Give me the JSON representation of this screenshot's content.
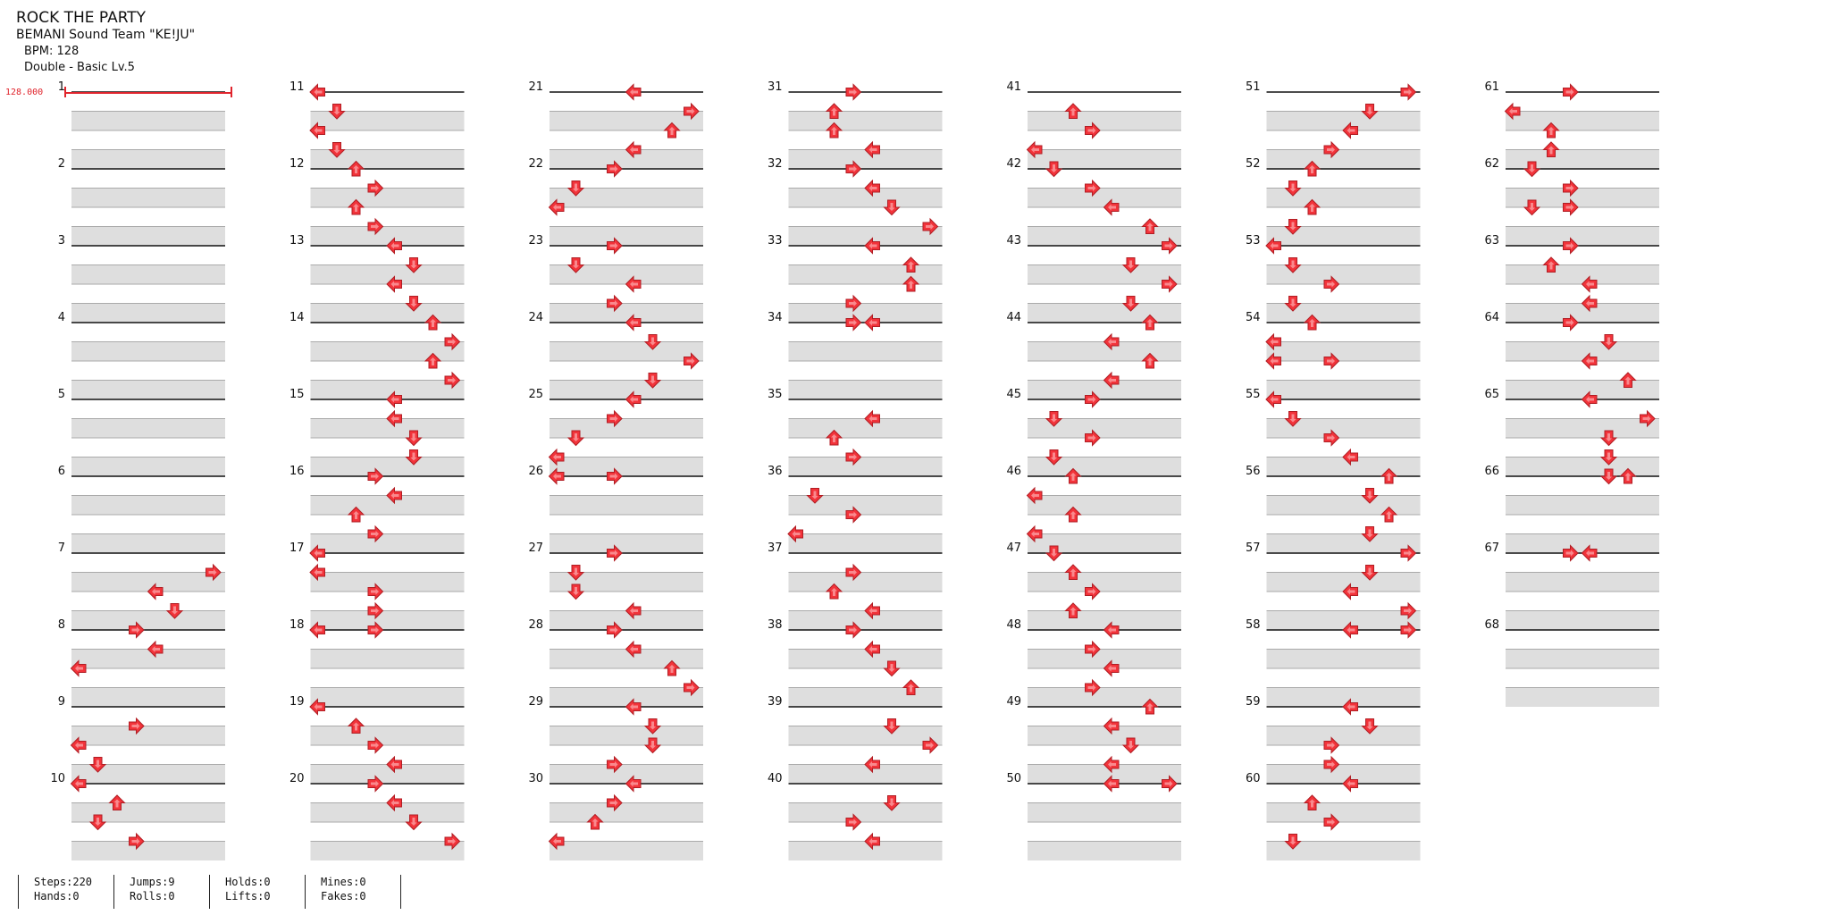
{
  "song": {
    "title": "ROCK THE PARTY",
    "artist": "BEMANI Sound Team \"KE!JU\"",
    "bpm": "BPM: 128",
    "chart": "Double - Basic Lv.5"
  },
  "bpm_marker": "128.000",
  "colors": {
    "arrow": "#f2333a",
    "arrow_stroke": "#b01e24",
    "beat_band": "#dedede",
    "bpm": "#e0242c"
  },
  "measures": {
    "count": 68,
    "labels": [
      "1",
      "2",
      "3",
      "4",
      "5",
      "6",
      "7",
      "8",
      "9",
      "10",
      "11",
      "12",
      "13",
      "14",
      "15",
      "16",
      "17",
      "18",
      "19",
      "20",
      "21",
      "22",
      "23",
      "24",
      "25",
      "26",
      "27",
      "28",
      "29",
      "30",
      "31",
      "32",
      "33",
      "34",
      "35",
      "36",
      "37",
      "38",
      "39",
      "40",
      "41",
      "42",
      "43",
      "44",
      "45",
      "46",
      "47",
      "48",
      "49",
      "50",
      "51",
      "52",
      "53",
      "54",
      "55",
      "56",
      "57",
      "58",
      "59",
      "60",
      "61",
      "62",
      "63",
      "64",
      "65",
      "66",
      "67",
      "68"
    ]
  },
  "notes": [
    [
      7,
      0.25,
      7
    ],
    [
      7,
      0.5,
      4
    ],
    [
      7,
      0.75,
      5
    ],
    [
      8,
      0,
      3
    ],
    [
      8,
      0.25,
      4
    ],
    [
      8,
      0.5,
      0
    ],
    [
      9,
      0.25,
      3
    ],
    [
      9,
      0.5,
      0
    ],
    [
      9,
      0.75,
      1
    ],
    [
      10,
      0,
      0
    ],
    [
      10,
      0.25,
      2
    ],
    [
      10,
      0.5,
      1
    ],
    [
      10,
      0.75,
      3
    ],
    [
      11,
      0,
      0
    ],
    [
      11,
      0.25,
      1
    ],
    [
      11,
      0.5,
      0
    ],
    [
      11,
      0.75,
      1
    ],
    [
      12,
      0,
      2
    ],
    [
      12,
      0.25,
      3
    ],
    [
      12,
      0.5,
      2
    ],
    [
      12,
      0.75,
      3
    ],
    [
      13,
      0,
      4
    ],
    [
      13,
      0.25,
      5
    ],
    [
      13,
      0.5,
      4
    ],
    [
      13,
      0.75,
      5
    ],
    [
      14,
      0,
      6
    ],
    [
      14,
      0.25,
      7
    ],
    [
      14,
      0.5,
      6
    ],
    [
      14,
      0.75,
      7
    ],
    [
      15,
      0,
      4
    ],
    [
      15,
      0.25,
      4
    ],
    [
      15,
      0.5,
      5
    ],
    [
      15,
      0.75,
      5
    ],
    [
      16,
      0,
      3
    ],
    [
      16,
      0.25,
      4
    ],
    [
      16,
      0.5,
      2
    ],
    [
      16,
      0.75,
      3
    ],
    [
      17,
      0,
      0
    ],
    [
      17,
      0.25,
      0
    ],
    [
      17,
      0.5,
      3
    ],
    [
      17,
      0.75,
      3
    ],
    [
      18,
      0,
      0
    ],
    [
      18,
      0,
      3
    ],
    [
      19,
      0,
      0
    ],
    [
      19,
      0.25,
      2
    ],
    [
      19,
      0.5,
      3
    ],
    [
      19,
      0.75,
      4
    ],
    [
      20,
      0,
      3
    ],
    [
      20,
      0.25,
      4
    ],
    [
      20,
      0.5,
      5
    ],
    [
      20,
      0.75,
      7
    ],
    [
      21,
      0,
      4
    ],
    [
      21,
      0.25,
      7
    ],
    [
      21,
      0.5,
      6
    ],
    [
      21,
      0.75,
      4
    ],
    [
      22,
      0,
      3
    ],
    [
      22,
      0.25,
      1
    ],
    [
      22,
      0.5,
      0
    ],
    [
      23,
      0,
      3
    ],
    [
      23,
      0.25,
      1
    ],
    [
      23,
      0.5,
      4
    ],
    [
      23,
      0.75,
      3
    ],
    [
      24,
      0,
      4
    ],
    [
      24,
      0.25,
      5
    ],
    [
      24,
      0.5,
      7
    ],
    [
      24,
      0.75,
      5
    ],
    [
      25,
      0,
      4
    ],
    [
      25,
      0.25,
      3
    ],
    [
      25,
      0.5,
      1
    ],
    [
      25,
      0.75,
      0
    ],
    [
      26,
      0,
      0
    ],
    [
      26,
      0,
      3
    ],
    [
      27,
      0,
      3
    ],
    [
      27,
      0.25,
      1
    ],
    [
      27,
      0.5,
      1
    ],
    [
      27,
      0.75,
      4
    ],
    [
      28,
      0,
      3
    ],
    [
      28,
      0.25,
      4
    ],
    [
      28,
      0.5,
      6
    ],
    [
      28,
      0.75,
      7
    ],
    [
      29,
      0,
      4
    ],
    [
      29,
      0.25,
      5
    ],
    [
      29,
      0.5,
      5
    ],
    [
      29,
      0.75,
      3
    ],
    [
      30,
      0,
      4
    ],
    [
      30,
      0.25,
      3
    ],
    [
      30,
      0.5,
      2
    ],
    [
      30,
      0.75,
      0
    ],
    [
      31,
      0,
      3
    ],
    [
      31,
      0.25,
      2
    ],
    [
      31,
      0.5,
      2
    ],
    [
      31,
      0.75,
      4
    ],
    [
      32,
      0,
      3
    ],
    [
      32,
      0.25,
      4
    ],
    [
      32,
      0.5,
      5
    ],
    [
      32,
      0.75,
      7
    ],
    [
      33,
      0,
      4
    ],
    [
      33,
      0.25,
      6
    ],
    [
      33,
      0.5,
      6
    ],
    [
      33,
      0.75,
      3
    ],
    [
      34,
      0,
      3
    ],
    [
      34,
      0,
      4
    ],
    [
      35,
      0.25,
      4
    ],
    [
      35,
      0.5,
      2
    ],
    [
      35,
      0.75,
      3
    ],
    [
      36,
      0.25,
      1
    ],
    [
      36,
      0.5,
      3
    ],
    [
      36,
      0.75,
      0
    ],
    [
      37,
      0.25,
      3
    ],
    [
      37,
      0.5,
      2
    ],
    [
      37,
      0.75,
      4
    ],
    [
      38,
      0,
      3
    ],
    [
      38,
      0.25,
      4
    ],
    [
      38,
      0.5,
      5
    ],
    [
      38,
      0.75,
      6
    ],
    [
      39,
      0.25,
      5
    ],
    [
      39,
      0.5,
      7
    ],
    [
      39,
      0.75,
      4
    ],
    [
      40,
      0.25,
      5
    ],
    [
      40,
      0.5,
      3
    ],
    [
      40,
      0.75,
      4
    ],
    [
      41,
      0.25,
      2
    ],
    [
      41,
      0.5,
      3
    ],
    [
      41,
      0.75,
      0
    ],
    [
      42,
      0,
      1
    ],
    [
      42,
      0.25,
      3
    ],
    [
      42,
      0.5,
      4
    ],
    [
      42,
      0.75,
      6
    ],
    [
      43,
      0,
      7
    ],
    [
      43,
      0.25,
      5
    ],
    [
      43,
      0.5,
      7
    ],
    [
      43,
      0.75,
      5
    ],
    [
      44,
      0,
      6
    ],
    [
      44,
      0.25,
      4
    ],
    [
      44,
      0.5,
      6
    ],
    [
      44,
      0.75,
      4
    ],
    [
      45,
      0,
      3
    ],
    [
      45,
      0.25,
      1
    ],
    [
      45,
      0.5,
      3
    ],
    [
      45,
      0.75,
      1
    ],
    [
      46,
      0,
      2
    ],
    [
      46,
      0.25,
      0
    ],
    [
      46,
      0.5,
      2
    ],
    [
      46,
      0.75,
      0
    ],
    [
      47,
      0,
      1
    ],
    [
      47,
      0.25,
      2
    ],
    [
      47,
      0.5,
      3
    ],
    [
      47,
      0.75,
      2
    ],
    [
      48,
      0,
      4
    ],
    [
      48,
      0.25,
      3
    ],
    [
      48,
      0.5,
      4
    ],
    [
      48,
      0.75,
      3
    ],
    [
      49,
      0,
      6
    ],
    [
      49,
      0.25,
      4
    ],
    [
      49,
      0.5,
      5
    ],
    [
      49,
      0.75,
      4
    ],
    [
      50,
      0,
      4
    ],
    [
      50,
      0,
      7
    ],
    [
      51,
      0,
      7
    ],
    [
      51,
      0.25,
      5
    ],
    [
      51,
      0.5,
      4
    ],
    [
      51,
      0.75,
      3
    ],
    [
      52,
      0,
      2
    ],
    [
      52,
      0.25,
      1
    ],
    [
      52,
      0.5,
      2
    ],
    [
      52,
      0.75,
      1
    ],
    [
      53,
      0,
      0
    ],
    [
      53,
      0.25,
      1
    ],
    [
      53,
      0.5,
      3
    ],
    [
      53,
      0.75,
      1
    ],
    [
      54,
      0,
      2
    ],
    [
      54,
      0.25,
      0
    ],
    [
      54,
      0.5,
      0
    ],
    [
      54,
      0.5,
      3
    ],
    [
      55,
      0,
      0
    ],
    [
      55,
      0.25,
      1
    ],
    [
      55,
      0.5,
      3
    ],
    [
      55,
      0.75,
      4
    ],
    [
      56,
      0,
      6
    ],
    [
      56,
      0.25,
      5
    ],
    [
      56,
      0.5,
      6
    ],
    [
      56,
      0.75,
      5
    ],
    [
      57,
      0,
      7
    ],
    [
      57,
      0.25,
      5
    ],
    [
      57,
      0.5,
      4
    ],
    [
      57,
      0.75,
      7
    ],
    [
      58,
      0,
      4
    ],
    [
      58,
      0,
      7
    ],
    [
      59,
      0,
      4
    ],
    [
      59,
      0.25,
      5
    ],
    [
      59,
      0.5,
      3
    ],
    [
      59,
      0.75,
      3
    ],
    [
      60,
      0,
      4
    ],
    [
      60,
      0.25,
      2
    ],
    [
      60,
      0.5,
      3
    ],
    [
      60,
      0.75,
      1
    ],
    [
      61,
      0,
      3
    ],
    [
      61,
      0.25,
      0
    ],
    [
      61,
      0.5,
      2
    ],
    [
      61,
      0.75,
      2
    ],
    [
      62,
      0,
      1
    ],
    [
      62,
      0.25,
      3
    ],
    [
      62,
      0.5,
      1
    ],
    [
      62,
      0.5,
      3
    ],
    [
      63,
      0,
      3
    ],
    [
      63,
      0.25,
      2
    ],
    [
      63,
      0.5,
      4
    ],
    [
      63,
      0.75,
      4
    ],
    [
      64,
      0,
      3
    ],
    [
      64,
      0.25,
      5
    ],
    [
      64,
      0.5,
      4
    ],
    [
      64,
      0.75,
      6
    ],
    [
      65,
      0,
      4
    ],
    [
      65,
      0.25,
      7
    ],
    [
      65,
      0.5,
      5
    ],
    [
      65,
      0.75,
      5
    ],
    [
      66,
      0,
      5
    ],
    [
      66,
      0,
      6
    ],
    [
      67,
      0,
      3
    ],
    [
      67,
      0,
      4
    ]
  ],
  "stats": [
    {
      "top": "Steps:220",
      "bottom": "Hands:0"
    },
    {
      "top": "Jumps:9",
      "bottom": "Rolls:0"
    },
    {
      "top": "Holds:0",
      "bottom": "Lifts:0"
    },
    {
      "top": "Mines:0",
      "bottom": "Fakes:0"
    }
  ]
}
